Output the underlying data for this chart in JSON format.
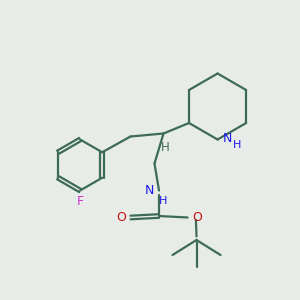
{
  "background_color": "#e8ece8",
  "bond_color": "#3d6b5a",
  "N_color": "#1a1aee",
  "O_color": "#cc1111",
  "F_color": "#cc33cc",
  "line_width": 1.6,
  "figsize": [
    3.0,
    3.0
  ],
  "dpi": 100,
  "xlim": [
    0,
    10
  ],
  "ylim": [
    0,
    10
  ]
}
